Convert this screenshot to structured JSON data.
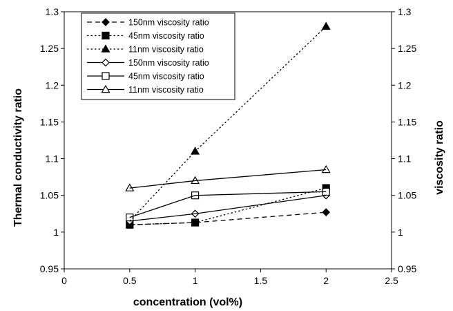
{
  "chart_data": {
    "type": "line",
    "xlabel": "concentration (vol%)",
    "ylabel_left": "Thermal conductivity ratio",
    "ylabel_right": "viscosity ratio",
    "xlim": [
      0,
      2.5
    ],
    "ylim": [
      0.95,
      1.3
    ],
    "xticks": [
      "0",
      "0.5",
      "1",
      "1.5",
      "2",
      "2.5"
    ],
    "yticks": [
      "0.95",
      "1",
      "1.05",
      "1.1",
      "1.15",
      "1.2",
      "1.25",
      "1.3"
    ],
    "legend_position": "top-left",
    "series": [
      {
        "name": "150nm viscosity ratio",
        "x": [
          0.5,
          1,
          2
        ],
        "y": [
          1.01,
          1.013,
          1.027
        ],
        "line": "longdash",
        "marker": "diamond",
        "filled": true,
        "show_points": [
          false,
          true,
          true
        ]
      },
      {
        "name": "45nm viscosity ratio",
        "x": [
          0.5,
          1,
          2
        ],
        "y": [
          1.01,
          1.013,
          1.06
        ],
        "line": "dotted",
        "marker": "square",
        "filled": true,
        "show_points": [
          true,
          true,
          true
        ]
      },
      {
        "name": "11nm viscosity ratio",
        "x": [
          0.5,
          1,
          2
        ],
        "y": [
          1.015,
          1.11,
          1.28
        ],
        "line": "dotted",
        "marker": "triangle",
        "filled": true,
        "show_points": [
          false,
          true,
          true
        ]
      },
      {
        "name": "150nm viscosity ratio",
        "x": [
          0.5,
          1,
          2
        ],
        "y": [
          1.015,
          1.025,
          1.05
        ],
        "line": "solid",
        "marker": "diamond",
        "filled": false,
        "show_points": [
          true,
          true,
          true
        ]
      },
      {
        "name": "45nm viscosity ratio",
        "x": [
          0.5,
          1,
          2
        ],
        "y": [
          1.02,
          1.05,
          1.055
        ],
        "line": "solid",
        "marker": "square",
        "filled": false,
        "show_points": [
          true,
          true,
          true
        ]
      },
      {
        "name": "11nm viscosity ratio",
        "x": [
          0.5,
          1,
          2
        ],
        "y": [
          1.06,
          1.07,
          1.085
        ],
        "line": "solid",
        "marker": "triangle",
        "filled": false,
        "show_points": [
          true,
          true,
          true
        ]
      }
    ]
  }
}
